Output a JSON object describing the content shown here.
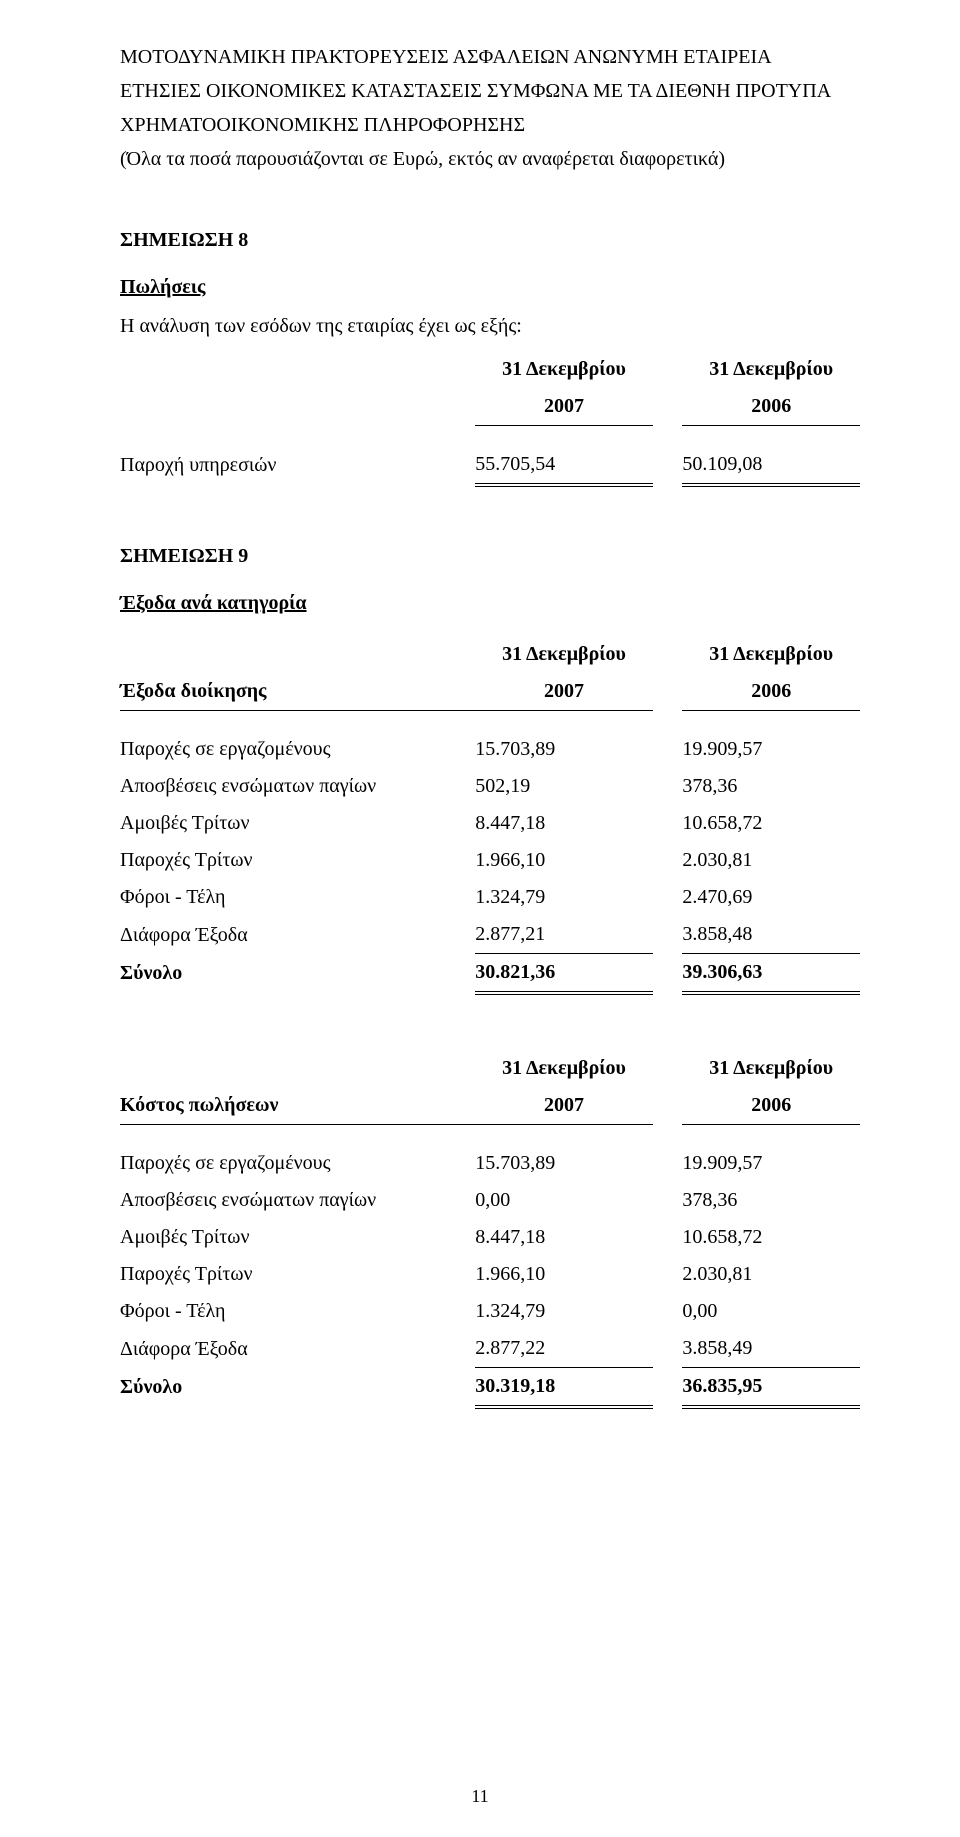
{
  "header": {
    "line1": "ΜΟΤΟΔΥΝΑΜΙΚΗ ΠΡΑΚΤΟΡΕΥΣΕΙΣ ΑΣΦΑΛΕΙΩΝ ΑΝΩΝΥΜΗ ΕΤΑΙΡΕΙΑ",
    "line2": "ΕΤΗΣΙΕΣ ΟΙΚΟΝΟΜΙΚΕΣ ΚΑΤΑΣΤΑΣΕΙΣ ΣΥΜΦΩΝΑ ΜΕ ΤΑ ΔΙΕΘΝΗ ΠΡΟΤΥΠΑ",
    "line3": "ΧΡΗΜΑΤΟΟΙΚΟΝΟΜΙΚΗΣ ΠΛΗΡΟΦΟΡΗΣΗΣ",
    "line4": "(Όλα τα ποσά παρουσιάζονται σε Ευρώ, εκτός αν αναφέρεται διαφορετικά)"
  },
  "note8": {
    "title": "ΣΗΜΕΙΩΣΗ 8",
    "subtitle": "Πωλήσεις",
    "intro": "Η ανάλυση των εσόδων της εταιρίας έχει ως εξής:",
    "col1_line1": "31 Δεκεμβρίου",
    "col1_line2": "2007",
    "col2_line1": "31 Δεκεμβρίου",
    "col2_line2": "2006",
    "row_label": "Παροχή υπηρεσιών",
    "row_v1": "55.705,54",
    "row_v2": "50.109,08"
  },
  "note9": {
    "title": "ΣΗΜΕΙΩΣΗ 9",
    "subtitle": "Έξοδα ανά κατηγορία",
    "admin": {
      "label": "Έξοδα διοίκησης",
      "col1_line1": "31 Δεκεμβρίου",
      "col1_line2": "2007",
      "col2_line1": "31 Δεκεμβρίου",
      "col2_line2": "2006",
      "rows": [
        {
          "l": "Παροχές σε εργαζομένους",
          "a": "15.703,89",
          "b": "19.909,57"
        },
        {
          "l": "Αποσβέσεις ενσώματων παγίων",
          "a": "502,19",
          "b": "378,36"
        },
        {
          "l": "Αμοιβές Τρίτων",
          "a": "8.447,18",
          "b": "10.658,72"
        },
        {
          "l": "Παροχές Τρίτων",
          "a": "1.966,10",
          "b": "2.030,81"
        },
        {
          "l": "Φόροι - Τέλη",
          "a": "1.324,79",
          "b": "2.470,69"
        },
        {
          "l": "Διάφορα Έξοδα",
          "a": "2.877,21",
          "b": "3.858,48"
        }
      ],
      "total_label": "Σύνολο",
      "total_a": "30.821,36",
      "total_b": "39.306,63"
    },
    "cogs": {
      "label": "Κόστος πωλήσεων",
      "col1_line1": "31 Δεκεμβρίου",
      "col1_line2": "2007",
      "col2_line1": "31 Δεκεμβρίου",
      "col2_line2": "2006",
      "rows": [
        {
          "l": "Παροχές σε εργαζομένους",
          "a": "15.703,89",
          "b": "19.909,57"
        },
        {
          "l": "Αποσβέσεις ενσώματων παγίων",
          "a": "0,00",
          "b": "378,36"
        },
        {
          "l": "Αμοιβές Τρίτων",
          "a": "8.447,18",
          "b": "10.658,72"
        },
        {
          "l": "Παροχές Τρίτων",
          "a": "1.966,10",
          "b": "2.030,81"
        },
        {
          "l": "Φόροι - Τέλη",
          "a": "1.324,79",
          "b": "0,00"
        },
        {
          "l": "Διάφορα Έξοδα",
          "a": "2.877,22",
          "b": "3.858,49"
        }
      ],
      "total_label": "Σύνολο",
      "total_a": "30.319,18",
      "total_b": "36.835,95"
    }
  },
  "page_number": "11",
  "style": {
    "font_family": "Times New Roman",
    "body_font_size_pt": 15,
    "text_color": "#000000",
    "background_color": "#ffffff",
    "rule_color": "#000000"
  }
}
